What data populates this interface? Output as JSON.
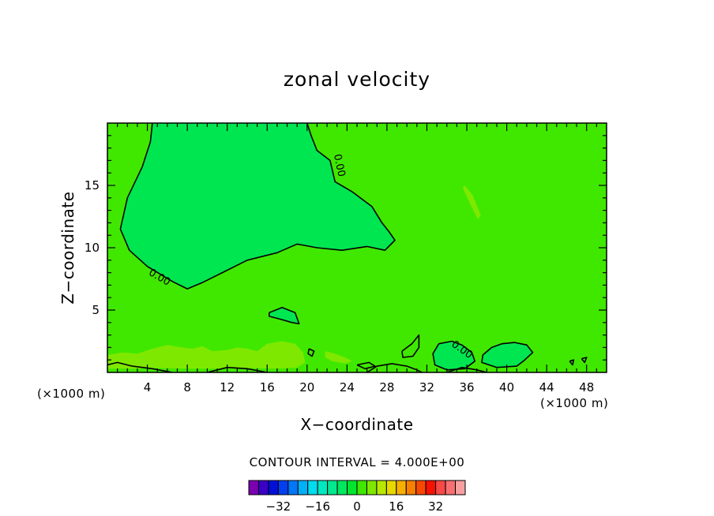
{
  "chart_data": {
    "type": "heatmap",
    "title": "zonal velocity",
    "xlabel": "X−coordinate",
    "ylabel": "Z−coordinate",
    "x_unit": "(×1000 m)",
    "y_unit": "(×1000 m)",
    "xlim": [
      0,
      50
    ],
    "ylim": [
      0,
      20
    ],
    "x_ticks": [
      4,
      8,
      12,
      16,
      20,
      24,
      28,
      32,
      36,
      40,
      44,
      48
    ],
    "y_ticks": [
      5,
      10,
      15
    ],
    "x_tick_labels": [
      "4",
      "8",
      "12",
      "16",
      "20",
      "24",
      "28",
      "32",
      "36",
      "40",
      "44",
      "48"
    ],
    "y_tick_labels": [
      "5",
      "10",
      "15"
    ],
    "background_value": 2,
    "contour_interval_text": "CONTOUR INTERVAL = 4.000E+00",
    "contour_labels": [
      {
        "text": "0.00",
        "x": 5.2,
        "z": 7.6,
        "angle": 30
      },
      {
        "text": "0.00",
        "x": 23.2,
        "z": 16.6,
        "angle": 78
      },
      {
        "text": "0.00",
        "x": 35.5,
        "z": 1.8,
        "angle": 35
      }
    ],
    "regions": [
      {
        "value": -2,
        "color": "#00e650",
        "points": [
          [
            4.5,
            20
          ],
          [
            4.3,
            18.5
          ],
          [
            3.5,
            16.5
          ],
          [
            2.0,
            14.0
          ],
          [
            1.3,
            11.5
          ],
          [
            2.2,
            9.8
          ],
          [
            4.0,
            8.5
          ],
          [
            6.5,
            7.3
          ],
          [
            8.0,
            6.7
          ],
          [
            9.5,
            7.2
          ],
          [
            11.5,
            8.0
          ],
          [
            14.0,
            9.0
          ],
          [
            17.0,
            9.6
          ],
          [
            19.0,
            10.3
          ],
          [
            21.0,
            10.0
          ],
          [
            23.5,
            9.8
          ],
          [
            26.0,
            10.1
          ],
          [
            27.8,
            9.8
          ],
          [
            28.8,
            10.6
          ],
          [
            28.2,
            11.3
          ],
          [
            27.5,
            12.0
          ],
          [
            26.5,
            13.3
          ],
          [
            24.5,
            14.5
          ],
          [
            22.8,
            15.3
          ],
          [
            22.3,
            17.0
          ],
          [
            21.0,
            17.8
          ],
          [
            20.4,
            19.0
          ],
          [
            20.0,
            20
          ]
        ]
      },
      {
        "value": -2,
        "color": "#00e650",
        "points": [
          [
            16.2,
            4.8
          ],
          [
            17.5,
            5.2
          ],
          [
            18.8,
            4.8
          ],
          [
            19.2,
            3.9
          ],
          [
            18.5,
            4.0
          ],
          [
            17.2,
            4.3
          ],
          [
            16.2,
            4.5
          ]
        ]
      },
      {
        "value": -2,
        "color": "#00e650",
        "points": [
          [
            37.6,
            1.4
          ],
          [
            38.5,
            2.0
          ],
          [
            39.5,
            2.3
          ],
          [
            40.8,
            2.4
          ],
          [
            42.0,
            2.2
          ],
          [
            42.6,
            1.6
          ],
          [
            41.8,
            1.0
          ],
          [
            41.0,
            0.5
          ],
          [
            39.0,
            0.4
          ],
          [
            37.5,
            0.8
          ]
        ]
      },
      {
        "value": -2,
        "color": "#00e650",
        "points": [
          [
            33.2,
            2.3
          ],
          [
            34.5,
            2.5
          ],
          [
            35.5,
            2.2
          ],
          [
            36.5,
            1.6
          ],
          [
            36.8,
            0.9
          ],
          [
            35.8,
            0.3
          ],
          [
            34.0,
            0.2
          ],
          [
            32.8,
            0.6
          ],
          [
            32.6,
            1.5
          ]
        ]
      },
      {
        "value": 6,
        "color": "#7fe800",
        "points": [
          [
            35.8,
            15.0
          ],
          [
            36.6,
            14.2
          ],
          [
            37.4,
            12.6
          ],
          [
            37.1,
            12.3
          ],
          [
            36.4,
            13.4
          ],
          [
            35.6,
            14.8
          ]
        ]
      },
      {
        "value": 6,
        "color": "#7fe800",
        "points": [
          [
            0,
            1.4
          ],
          [
            1.5,
            1.6
          ],
          [
            3.0,
            1.5
          ],
          [
            4.5,
            1.9
          ],
          [
            6.0,
            2.2
          ],
          [
            7.5,
            2.0
          ],
          [
            8.5,
            1.9
          ],
          [
            9.5,
            2.1
          ],
          [
            10.5,
            1.7
          ],
          [
            12.0,
            1.8
          ],
          [
            13.0,
            2.0
          ],
          [
            14.0,
            1.9
          ],
          [
            15.0,
            1.7
          ],
          [
            16.0,
            2.3
          ],
          [
            17.5,
            2.5
          ],
          [
            18.8,
            2.3
          ],
          [
            19.6,
            1.6
          ],
          [
            19.8,
            0.8
          ],
          [
            19.0,
            0.4
          ],
          [
            17.0,
            0.3
          ],
          [
            14.0,
            0.35
          ],
          [
            11.0,
            0.3
          ],
          [
            8.0,
            0.3
          ],
          [
            5.0,
            0.35
          ],
          [
            2.5,
            0.3
          ],
          [
            0,
            0.3
          ]
        ]
      },
      {
        "value": 6,
        "color": "#7fe800",
        "points": [
          [
            21.8,
            1.7
          ],
          [
            22.8,
            1.5
          ],
          [
            23.8,
            1.2
          ],
          [
            24.5,
            0.9
          ],
          [
            23.8,
            0.7
          ],
          [
            22.5,
            0.9
          ],
          [
            21.8,
            1.2
          ]
        ]
      }
    ],
    "contours": [
      {
        "level": 0,
        "points": [
          [
            4.5,
            20
          ],
          [
            4.3,
            18.5
          ],
          [
            3.5,
            16.5
          ],
          [
            2.0,
            14.0
          ],
          [
            1.3,
            11.5
          ],
          [
            2.2,
            9.8
          ],
          [
            4.0,
            8.5
          ],
          [
            6.5,
            7.3
          ],
          [
            8.0,
            6.7
          ],
          [
            9.5,
            7.2
          ],
          [
            11.5,
            8.0
          ],
          [
            14.0,
            9.0
          ],
          [
            17.0,
            9.6
          ],
          [
            19.0,
            10.3
          ],
          [
            21.0,
            10.0
          ],
          [
            23.5,
            9.8
          ],
          [
            26.0,
            10.1
          ],
          [
            27.8,
            9.8
          ],
          [
            28.8,
            10.6
          ],
          [
            28.2,
            11.3
          ],
          [
            27.5,
            12.0
          ],
          [
            26.5,
            13.3
          ],
          [
            24.5,
            14.5
          ],
          [
            22.8,
            15.3
          ],
          [
            22.3,
            17.0
          ],
          [
            21.0,
            17.8
          ],
          [
            20.4,
            19.0
          ],
          [
            20.0,
            20
          ]
        ]
      },
      {
        "level": 0,
        "points": [
          [
            16.2,
            4.8
          ],
          [
            17.5,
            5.2
          ],
          [
            18.8,
            4.8
          ],
          [
            19.2,
            3.9
          ],
          [
            18.5,
            4.0
          ],
          [
            17.2,
            4.3
          ],
          [
            16.2,
            4.5
          ],
          [
            16.2,
            4.8
          ]
        ]
      },
      {
        "level": 0,
        "points": [
          [
            37.6,
            1.4
          ],
          [
            38.5,
            2.0
          ],
          [
            39.5,
            2.3
          ],
          [
            40.8,
            2.4
          ],
          [
            42.0,
            2.2
          ],
          [
            42.6,
            1.6
          ],
          [
            41.8,
            1.0
          ],
          [
            41.0,
            0.5
          ],
          [
            39.0,
            0.4
          ],
          [
            37.5,
            0.8
          ],
          [
            37.6,
            1.4
          ]
        ]
      },
      {
        "level": 0,
        "points": [
          [
            33.2,
            2.3
          ],
          [
            34.5,
            2.5
          ],
          [
            35.5,
            2.2
          ],
          [
            36.5,
            1.6
          ],
          [
            36.8,
            0.9
          ],
          [
            35.8,
            0.3
          ],
          [
            34.0,
            0.2
          ],
          [
            32.8,
            0.6
          ],
          [
            32.6,
            1.5
          ],
          [
            33.2,
            2.3
          ]
        ]
      },
      {
        "level": 0,
        "points": [
          [
            29.5,
            1.7
          ],
          [
            30.5,
            2.3
          ],
          [
            31.2,
            3.0
          ],
          [
            31.2,
            2.0
          ],
          [
            30.6,
            1.3
          ],
          [
            29.6,
            1.2
          ],
          [
            29.5,
            1.7
          ]
        ]
      },
      {
        "level": 0,
        "points": [
          [
            20.2,
            1.9
          ],
          [
            20.7,
            1.7
          ],
          [
            20.5,
            1.3
          ],
          [
            20.1,
            1.5
          ],
          [
            20.2,
            1.9
          ]
        ]
      },
      {
        "level": 0,
        "points": [
          [
            26.0,
            0.0
          ],
          [
            27.0,
            0.5
          ],
          [
            28.5,
            0.7
          ],
          [
            30.0,
            0.5
          ],
          [
            31.0,
            0.2
          ],
          [
            31.5,
            0.0
          ]
        ]
      },
      {
        "level": 0,
        "points": [
          [
            25.0,
            0.6
          ],
          [
            26.2,
            0.8
          ],
          [
            26.8,
            0.5
          ],
          [
            25.8,
            0.3
          ],
          [
            25.0,
            0.6
          ]
        ]
      },
      {
        "level": 0,
        "points": [
          [
            47.5,
            1.1
          ],
          [
            48.0,
            1.2
          ],
          [
            47.8,
            0.8
          ],
          [
            47.5,
            1.1
          ]
        ]
      },
      {
        "level": 0,
        "points": [
          [
            46.3,
            0.9
          ],
          [
            46.7,
            1.0
          ],
          [
            46.6,
            0.6
          ],
          [
            46.3,
            0.9
          ]
        ]
      },
      {
        "level": 0,
        "points": [
          [
            0,
            0.6
          ],
          [
            1.0,
            0.8
          ],
          [
            2.5,
            0.5
          ],
          [
            4.5,
            0.3
          ],
          [
            6.5,
            0.0
          ]
        ]
      },
      {
        "level": 0,
        "points": [
          [
            10.0,
            0.0
          ],
          [
            12.0,
            0.4
          ],
          [
            14.0,
            0.3
          ],
          [
            16.0,
            0.0
          ]
        ]
      },
      {
        "level": 0,
        "points": [
          [
            34.0,
            0.0
          ],
          [
            35.5,
            0.4
          ],
          [
            37.0,
            0.2
          ],
          [
            38.0,
            0.0
          ]
        ]
      }
    ],
    "colorbar": {
      "colors": [
        "#7a00b0",
        "#3a00c8",
        "#0010d8",
        "#0040f0",
        "#0078f8",
        "#00b0f8",
        "#00dcf0",
        "#00e8c0",
        "#00e890",
        "#00e860",
        "#00e630",
        "#40e800",
        "#7fe800",
        "#b8e800",
        "#e8d800",
        "#f8b000",
        "#f88000",
        "#f84800",
        "#f81000",
        "#f84848",
        "#f87070",
        "#f8a0a0"
      ],
      "tick_labels": [
        "−32",
        "−16",
        "0",
        "16",
        "32"
      ],
      "tick_values": [
        -32,
        -16,
        0,
        16,
        32
      ],
      "range": [
        -44,
        44
      ]
    }
  }
}
